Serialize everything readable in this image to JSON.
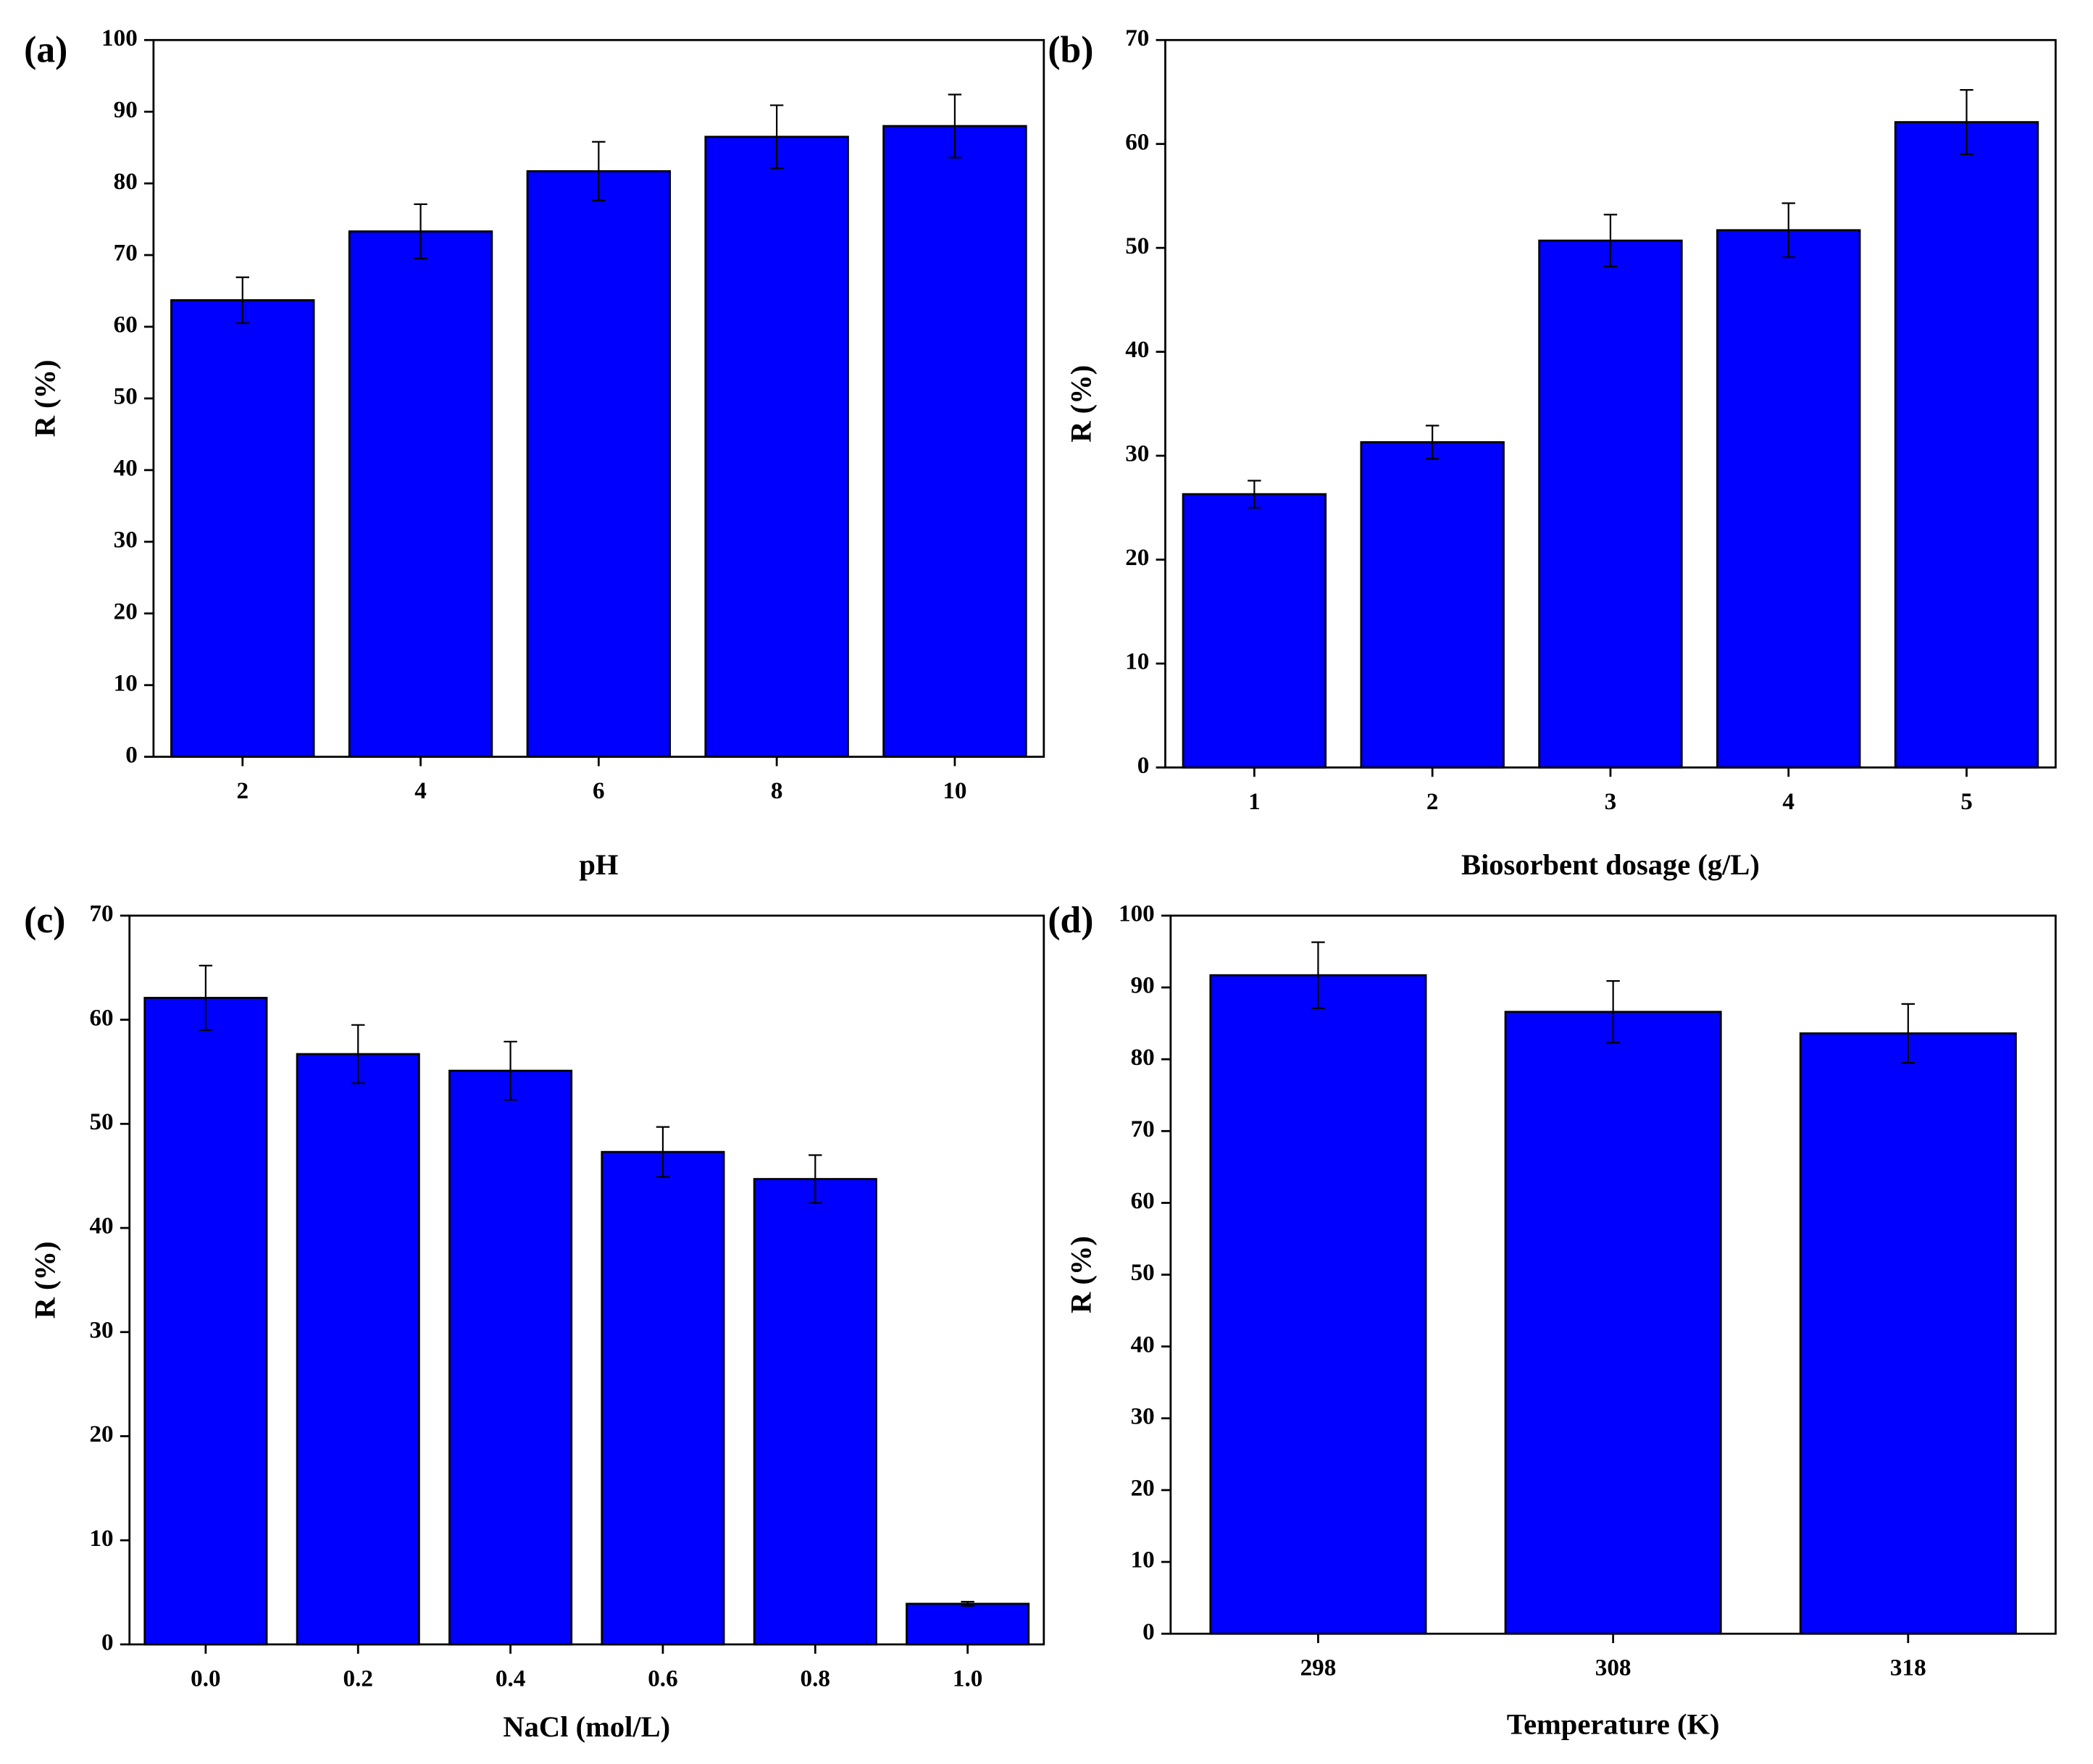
{
  "chart_data": [
    {
      "type": "bar",
      "title": "(a)",
      "xlabel": "pH",
      "ylabel": "R (%)",
      "color": "#0000ff",
      "categories": [
        "2",
        "4",
        "6",
        "8",
        "10"
      ],
      "values": [
        63.7,
        73.3,
        81.7,
        86.5,
        88.0
      ],
      "errors": [
        3.2,
        3.8,
        4.1,
        4.4,
        4.4
      ],
      "ylim": [
        0,
        100
      ],
      "yticks": [
        0,
        10,
        20,
        30,
        40,
        50,
        60,
        70,
        80,
        90,
        100
      ]
    },
    {
      "type": "bar",
      "title": "(b)",
      "xlabel": "Biosorbent dosage (g/L)",
      "ylabel": "R (%)",
      "color": "#0000ff",
      "categories": [
        "1",
        "2",
        "3",
        "4",
        "5"
      ],
      "values": [
        26.3,
        31.3,
        50.7,
        51.7,
        62.1
      ],
      "errors": [
        1.3,
        1.6,
        2.5,
        2.6,
        3.1
      ],
      "ylim": [
        0,
        70
      ],
      "yticks": [
        0,
        10,
        20,
        30,
        40,
        50,
        60,
        70
      ]
    },
    {
      "type": "bar",
      "title": "(c)",
      "xlabel": "NaCl (mol/L)",
      "ylabel": "R (%)",
      "color": "#0000ff",
      "categories": [
        "0.0",
        "0.2",
        "0.4",
        "0.6",
        "0.8",
        "1.0"
      ],
      "values": [
        62.1,
        56.7,
        55.1,
        47.3,
        44.7,
        3.9
      ],
      "errors": [
        3.1,
        2.8,
        2.8,
        2.4,
        2.3,
        0.2
      ],
      "ylim": [
        0,
        70
      ],
      "yticks": [
        0,
        10,
        20,
        30,
        40,
        50,
        60,
        70
      ]
    },
    {
      "type": "bar",
      "title": "(d)",
      "xlabel": "Temperature (K)",
      "ylabel": "R (%)",
      "color": "#0000ff",
      "categories": [
        "298",
        "308",
        "318"
      ],
      "values": [
        91.7,
        86.6,
        83.6
      ],
      "errors": [
        4.6,
        4.3,
        4.1
      ],
      "ylim": [
        0,
        100
      ],
      "yticks": [
        0,
        10,
        20,
        30,
        40,
        50,
        60,
        70,
        80,
        90,
        100
      ]
    }
  ]
}
